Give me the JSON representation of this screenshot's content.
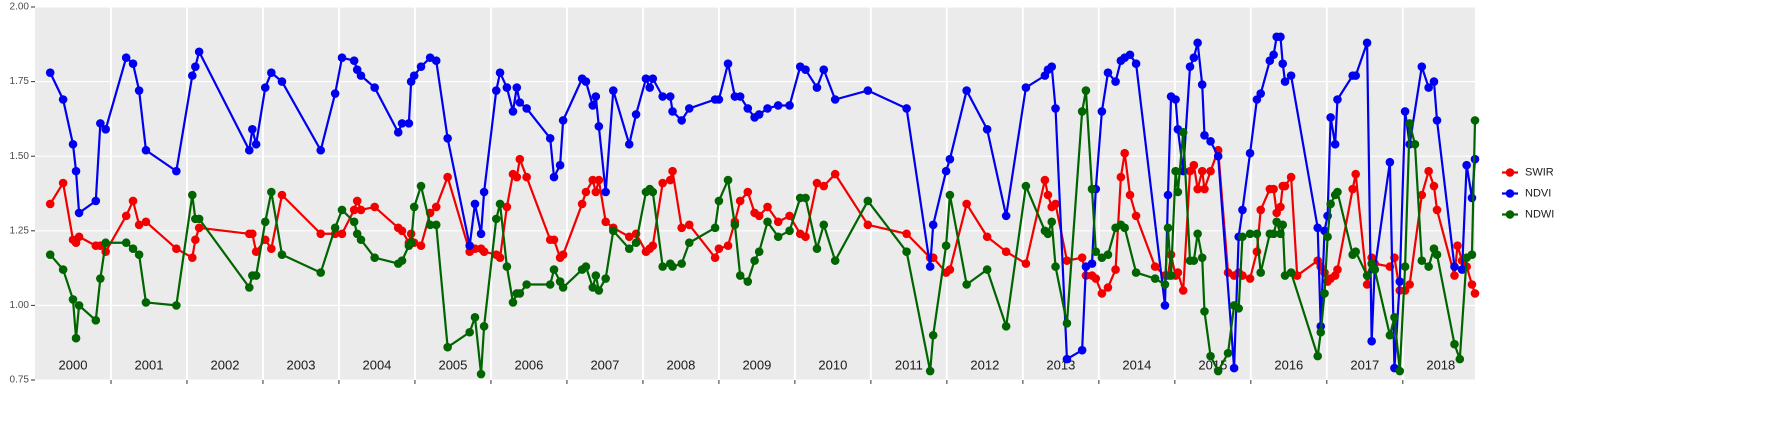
{
  "chart_data": {
    "type": "line",
    "xlim": [
      2000,
      2018.95
    ],
    "ylim": [
      0.75,
      2.0
    ],
    "xticks": [
      {
        "value": 2000.5,
        "label": "2000"
      },
      {
        "value": 2001.5,
        "label": "2001"
      },
      {
        "value": 2002.5,
        "label": "2002"
      },
      {
        "value": 2003.5,
        "label": "2003"
      },
      {
        "value": 2004.5,
        "label": "2004"
      },
      {
        "value": 2005.5,
        "label": "2005"
      },
      {
        "value": 2006.5,
        "label": "2006"
      },
      {
        "value": 2007.5,
        "label": "2007"
      },
      {
        "value": 2008.5,
        "label": "2008"
      },
      {
        "value": 2009.5,
        "label": "2009"
      },
      {
        "value": 2010.5,
        "label": "2010"
      },
      {
        "value": 2011.5,
        "label": "2011"
      },
      {
        "value": 2012.5,
        "label": "2012"
      },
      {
        "value": 2013.5,
        "label": "2013"
      },
      {
        "value": 2014.5,
        "label": "2014"
      },
      {
        "value": 2015.5,
        "label": "2015"
      },
      {
        "value": 2016.5,
        "label": "2016"
      },
      {
        "value": 2017.5,
        "label": "2017"
      },
      {
        "value": 2018.5,
        "label": "2018"
      }
    ],
    "yticks": [
      {
        "value": 0.75,
        "label": "0.75"
      },
      {
        "value": 1.0,
        "label": "1.00"
      },
      {
        "value": 1.25,
        "label": "1.25"
      },
      {
        "value": 1.5,
        "label": "1.50"
      },
      {
        "value": 1.75,
        "label": "1.75"
      },
      {
        "value": 2.0,
        "label": "2.00"
      }
    ],
    "grid": true,
    "legend": "right",
    "series": [
      {
        "name": "SWIR",
        "color": "#f20000",
        "x": [
          2000.2,
          2000.37,
          2000.5,
          2000.54,
          2000.58,
          2000.8,
          2000.86,
          2000.93,
          2001.2,
          2001.29,
          2001.37,
          2001.46,
          2001.86,
          2002.07,
          2002.11,
          2002.16,
          2002.82,
          2002.86,
          2002.91,
          2003.03,
          2003.11,
          2003.25,
          2003.76,
          2003.95,
          2004.04,
          2004.2,
          2004.24,
          2004.29,
          2004.47,
          2004.78,
          2004.83,
          2004.92,
          2004.95,
          2004.99,
          2005.08,
          2005.2,
          2005.28,
          2005.43,
          2005.72,
          2005.79,
          2005.87,
          2005.91,
          2006.07,
          2006.12,
          2006.21,
          2006.29,
          2006.34,
          2006.38,
          2006.47,
          2006.78,
          2006.83,
          2006.91,
          2006.95,
          2007.2,
          2007.25,
          2007.34,
          2007.38,
          2007.42,
          2007.51,
          2007.61,
          2007.82,
          2007.91,
          2008.04,
          2008.09,
          2008.13,
          2008.26,
          2008.36,
          2008.39,
          2008.51,
          2008.61,
          2008.95,
          2009.0,
          2009.12,
          2009.21,
          2009.28,
          2009.38,
          2009.47,
          2009.53,
          2009.64,
          2009.78,
          2009.93,
          2010.07,
          2010.14,
          2010.29,
          2010.38,
          2010.53,
          2010.96,
          2011.47,
          2011.78,
          2011.82,
          2011.99,
          2012.04,
          2012.26,
          2012.53,
          2012.78,
          2013.04,
          2013.29,
          2013.33,
          2013.38,
          2013.43,
          2013.58,
          2013.78,
          2013.83,
          2013.91,
          2013.96,
          2014.04,
          2014.12,
          2014.22,
          2014.29,
          2014.34,
          2014.41,
          2014.49,
          2014.74,
          2014.87,
          2014.91,
          2014.95,
          2015.01,
          2015.04,
          2015.11,
          2015.2,
          2015.25,
          2015.3,
          2015.36,
          2015.39,
          2015.47,
          2015.57,
          2015.7,
          2015.78,
          2015.84,
          2015.89,
          2015.99,
          2016.08,
          2016.13,
          2016.25,
          2016.3,
          2016.34,
          2016.39,
          2016.42,
          2016.45,
          2016.53,
          2016.61,
          2016.88,
          2016.92,
          2016.97,
          2017.01,
          2017.05,
          2017.11,
          2017.14,
          2017.34,
          2017.38,
          2017.53,
          2017.59,
          2017.63,
          2017.83,
          2017.89,
          2017.96,
          2018.03,
          2018.09,
          2018.25,
          2018.34,
          2018.41,
          2018.45,
          2018.68,
          2018.72,
          2018.78,
          2018.84,
          2018.91,
          2018.95
        ],
        "values": [
          1.34,
          1.41,
          1.22,
          1.21,
          1.23,
          1.2,
          1.2,
          1.18,
          1.3,
          1.35,
          1.27,
          1.28,
          1.19,
          1.16,
          1.22,
          1.26,
          1.24,
          1.24,
          1.18,
          1.22,
          1.19,
          1.37,
          1.24,
          1.24,
          1.24,
          1.32,
          1.35,
          1.32,
          1.33,
          1.26,
          1.25,
          1.21,
          1.24,
          1.21,
          1.2,
          1.31,
          1.33,
          1.43,
          1.18,
          1.19,
          1.19,
          1.18,
          1.17,
          1.16,
          1.33,
          1.44,
          1.43,
          1.49,
          1.43,
          1.22,
          1.22,
          1.16,
          1.17,
          1.34,
          1.38,
          1.42,
          1.38,
          1.42,
          1.28,
          1.26,
          1.23,
          1.24,
          1.18,
          1.19,
          1.2,
          1.41,
          1.42,
          1.45,
          1.26,
          1.27,
          1.16,
          1.19,
          1.2,
          1.28,
          1.35,
          1.38,
          1.31,
          1.3,
          1.33,
          1.28,
          1.3,
          1.24,
          1.23,
          1.41,
          1.4,
          1.44,
          1.27,
          1.24,
          1.16,
          1.16,
          1.11,
          1.12,
          1.34,
          1.23,
          1.18,
          1.14,
          1.42,
          1.37,
          1.33,
          1.34,
          1.15,
          1.16,
          1.1,
          1.1,
          1.09,
          1.04,
          1.06,
          1.12,
          1.43,
          1.51,
          1.37,
          1.3,
          1.13,
          1.1,
          1.1,
          1.17,
          1.1,
          1.11,
          1.05,
          1.45,
          1.47,
          1.39,
          1.45,
          1.39,
          1.45,
          1.52,
          1.11,
          1.1,
          1.11,
          1.1,
          1.09,
          1.18,
          1.32,
          1.39,
          1.39,
          1.31,
          1.33,
          1.4,
          1.4,
          1.43,
          1.1,
          1.15,
          1.13,
          1.11,
          1.08,
          1.09,
          1.1,
          1.12,
          1.39,
          1.44,
          1.07,
          1.16,
          1.14,
          1.13,
          1.16,
          1.05,
          1.05,
          1.07,
          1.37,
          1.45,
          1.4,
          1.32,
          1.1,
          1.2,
          1.15,
          1.13,
          1.07,
          1.04
        ]
      },
      {
        "name": "NDVI",
        "color": "#0000f0",
        "x": [
          2000.2,
          2000.37,
          2000.5,
          2000.54,
          2000.58,
          2000.8,
          2000.86,
          2000.93,
          2001.2,
          2001.29,
          2001.37,
          2001.46,
          2001.86,
          2002.07,
          2002.11,
          2002.16,
          2002.82,
          2002.86,
          2002.91,
          2003.03,
          2003.11,
          2003.25,
          2003.76,
          2003.95,
          2004.04,
          2004.2,
          2004.24,
          2004.29,
          2004.47,
          2004.78,
          2004.83,
          2004.92,
          2004.95,
          2004.99,
          2005.08,
          2005.2,
          2005.28,
          2005.43,
          2005.72,
          2005.79,
          2005.87,
          2005.91,
          2006.07,
          2006.12,
          2006.21,
          2006.29,
          2006.34,
          2006.38,
          2006.47,
          2006.78,
          2006.83,
          2006.91,
          2006.95,
          2007.2,
          2007.25,
          2007.34,
          2007.38,
          2007.42,
          2007.51,
          2007.61,
          2007.82,
          2007.91,
          2008.04,
          2008.09,
          2008.13,
          2008.26,
          2008.36,
          2008.39,
          2008.51,
          2008.61,
          2008.95,
          2009.0,
          2009.12,
          2009.21,
          2009.28,
          2009.38,
          2009.47,
          2009.53,
          2009.64,
          2009.78,
          2009.93,
          2010.07,
          2010.14,
          2010.29,
          2010.38,
          2010.53,
          2010.96,
          2011.47,
          2011.78,
          2011.82,
          2011.99,
          2012.04,
          2012.26,
          2012.53,
          2012.78,
          2013.04,
          2013.29,
          2013.33,
          2013.38,
          2013.43,
          2013.58,
          2013.78,
          2013.83,
          2013.91,
          2013.96,
          2014.04,
          2014.12,
          2014.22,
          2014.29,
          2014.34,
          2014.41,
          2014.49,
          2014.87,
          2014.91,
          2014.95,
          2015.01,
          2015.04,
          2015.11,
          2015.2,
          2015.25,
          2015.3,
          2015.36,
          2015.39,
          2015.47,
          2015.57,
          2015.78,
          2015.84,
          2015.89,
          2015.99,
          2016.08,
          2016.13,
          2016.25,
          2016.3,
          2016.34,
          2016.39,
          2016.42,
          2016.45,
          2016.53,
          2016.88,
          2016.92,
          2016.97,
          2017.01,
          2017.05,
          2017.11,
          2017.14,
          2017.34,
          2017.38,
          2017.53,
          2017.59,
          2017.63,
          2017.83,
          2017.89,
          2017.96,
          2018.03,
          2018.09,
          2018.25,
          2018.34,
          2018.41,
          2018.45,
          2018.68,
          2018.78,
          2018.84,
          2018.91,
          2018.95
        ],
        "values": [
          1.78,
          1.69,
          1.54,
          1.45,
          1.31,
          1.35,
          1.61,
          1.59,
          1.83,
          1.81,
          1.72,
          1.52,
          1.45,
          1.77,
          1.8,
          1.85,
          1.52,
          1.59,
          1.54,
          1.73,
          1.78,
          1.75,
          1.52,
          1.71,
          1.83,
          1.82,
          1.79,
          1.77,
          1.73,
          1.58,
          1.61,
          1.61,
          1.75,
          1.77,
          1.8,
          1.83,
          1.82,
          1.56,
          1.2,
          1.34,
          1.24,
          1.38,
          1.72,
          1.78,
          1.73,
          1.65,
          1.73,
          1.68,
          1.66,
          1.56,
          1.43,
          1.47,
          1.62,
          1.76,
          1.75,
          1.67,
          1.7,
          1.6,
          1.38,
          1.72,
          1.54,
          1.64,
          1.76,
          1.73,
          1.76,
          1.7,
          1.7,
          1.65,
          1.62,
          1.66,
          1.69,
          1.69,
          1.81,
          1.7,
          1.7,
          1.66,
          1.63,
          1.64,
          1.66,
          1.67,
          1.67,
          1.8,
          1.79,
          1.73,
          1.79,
          1.69,
          1.72,
          1.66,
          1.13,
          1.27,
          1.45,
          1.49,
          1.72,
          1.59,
          1.3,
          1.73,
          1.77,
          1.79,
          1.8,
          1.66,
          0.82,
          0.85,
          1.13,
          1.14,
          1.39,
          1.65,
          1.78,
          1.75,
          1.82,
          1.83,
          1.84,
          1.81,
          1.0,
          1.37,
          1.7,
          1.69,
          1.59,
          1.45,
          1.8,
          1.83,
          1.88,
          1.74,
          1.57,
          1.55,
          1.5,
          0.79,
          1.23,
          1.32,
          1.51,
          1.69,
          1.71,
          1.82,
          1.84,
          1.9,
          1.9,
          1.81,
          1.75,
          1.77,
          1.26,
          0.93,
          1.25,
          1.3,
          1.63,
          1.54,
          1.69,
          1.77,
          1.77,
          1.88,
          0.88,
          1.12,
          1.48,
          0.79,
          1.08,
          1.65,
          1.54,
          1.8,
          1.73,
          1.75,
          1.62,
          1.13,
          1.12,
          1.47,
          1.36,
          1.49
        ]
      },
      {
        "name": "NDWI",
        "color": "#006400",
        "x": [
          2000.2,
          2000.37,
          2000.5,
          2000.54,
          2000.58,
          2000.8,
          2000.86,
          2000.93,
          2001.2,
          2001.29,
          2001.37,
          2001.46,
          2001.86,
          2002.07,
          2002.11,
          2002.16,
          2002.82,
          2002.86,
          2002.91,
          2003.03,
          2003.11,
          2003.25,
          2003.76,
          2003.95,
          2004.04,
          2004.2,
          2004.24,
          2004.29,
          2004.47,
          2004.78,
          2004.83,
          2004.92,
          2004.95,
          2004.99,
          2005.08,
          2005.2,
          2005.28,
          2005.43,
          2005.72,
          2005.79,
          2005.87,
          2005.91,
          2006.07,
          2006.12,
          2006.21,
          2006.29,
          2006.34,
          2006.38,
          2006.47,
          2006.78,
          2006.83,
          2006.91,
          2006.95,
          2007.2,
          2007.25,
          2007.34,
          2007.38,
          2007.42,
          2007.51,
          2007.61,
          2007.82,
          2007.91,
          2008.04,
          2008.09,
          2008.13,
          2008.26,
          2008.36,
          2008.39,
          2008.51,
          2008.61,
          2008.95,
          2009.0,
          2009.12,
          2009.21,
          2009.28,
          2009.38,
          2009.47,
          2009.53,
          2009.64,
          2009.78,
          2009.93,
          2010.07,
          2010.14,
          2010.29,
          2010.38,
          2010.53,
          2010.96,
          2011.47,
          2011.78,
          2011.82,
          2011.99,
          2012.04,
          2012.26,
          2012.53,
          2012.78,
          2013.04,
          2013.29,
          2013.33,
          2013.38,
          2013.43,
          2013.58,
          2013.78,
          2013.83,
          2013.91,
          2013.96,
          2014.04,
          2014.12,
          2014.22,
          2014.29,
          2014.34,
          2014.49,
          2014.74,
          2014.87,
          2014.91,
          2014.95,
          2015.01,
          2015.04,
          2015.11,
          2015.2,
          2015.25,
          2015.3,
          2015.36,
          2015.39,
          2015.47,
          2015.57,
          2015.7,
          2015.78,
          2015.84,
          2015.89,
          2015.99,
          2016.08,
          2016.13,
          2016.25,
          2016.3,
          2016.34,
          2016.39,
          2016.42,
          2016.45,
          2016.53,
          2016.88,
          2016.92,
          2016.97,
          2017.01,
          2017.05,
          2017.11,
          2017.14,
          2017.34,
          2017.38,
          2017.53,
          2017.59,
          2017.63,
          2017.83,
          2017.89,
          2017.96,
          2018.03,
          2018.09,
          2018.16,
          2018.25,
          2018.34,
          2018.41,
          2018.45,
          2018.68,
          2018.75,
          2018.84,
          2018.91,
          2018.95
        ],
        "values": [
          1.17,
          1.12,
          1.02,
          0.89,
          1.0,
          0.95,
          1.09,
          1.21,
          1.21,
          1.19,
          1.17,
          1.01,
          1.0,
          1.37,
          1.29,
          1.29,
          1.06,
          1.1,
          1.1,
          1.28,
          1.38,
          1.17,
          1.11,
          1.26,
          1.32,
          1.28,
          1.24,
          1.22,
          1.16,
          1.14,
          1.15,
          1.2,
          1.21,
          1.33,
          1.4,
          1.27,
          1.27,
          0.86,
          0.91,
          0.96,
          0.77,
          0.93,
          1.29,
          1.34,
          1.13,
          1.01,
          1.04,
          1.04,
          1.07,
          1.07,
          1.12,
          1.08,
          1.06,
          1.12,
          1.13,
          1.06,
          1.1,
          1.05,
          1.09,
          1.25,
          1.19,
          1.21,
          1.38,
          1.39,
          1.38,
          1.13,
          1.14,
          1.13,
          1.14,
          1.21,
          1.26,
          1.35,
          1.42,
          1.27,
          1.1,
          1.08,
          1.15,
          1.18,
          1.28,
          1.23,
          1.25,
          1.36,
          1.36,
          1.19,
          1.27,
          1.15,
          1.35,
          1.18,
          0.78,
          0.9,
          1.2,
          1.37,
          1.07,
          1.12,
          0.93,
          1.4,
          1.25,
          1.24,
          1.28,
          1.13,
          0.94,
          1.65,
          1.72,
          1.39,
          1.18,
          1.16,
          1.17,
          1.26,
          1.27,
          1.26,
          1.11,
          1.09,
          1.07,
          1.26,
          1.1,
          1.45,
          1.38,
          1.58,
          1.15,
          1.15,
          1.24,
          1.16,
          0.98,
          0.83,
          0.78,
          0.84,
          1.0,
          0.99,
          1.23,
          1.24,
          1.24,
          1.11,
          1.24,
          1.24,
          1.28,
          1.24,
          1.27,
          1.1,
          1.11,
          0.83,
          0.91,
          1.04,
          1.23,
          1.34,
          1.37,
          1.38,
          1.17,
          1.18,
          1.1,
          1.14,
          1.12,
          0.9,
          0.96,
          0.78,
          1.13,
          1.61,
          1.54,
          1.15,
          1.13,
          1.19,
          1.17,
          0.87,
          0.82,
          1.16,
          1.17,
          1.62
        ]
      }
    ]
  }
}
